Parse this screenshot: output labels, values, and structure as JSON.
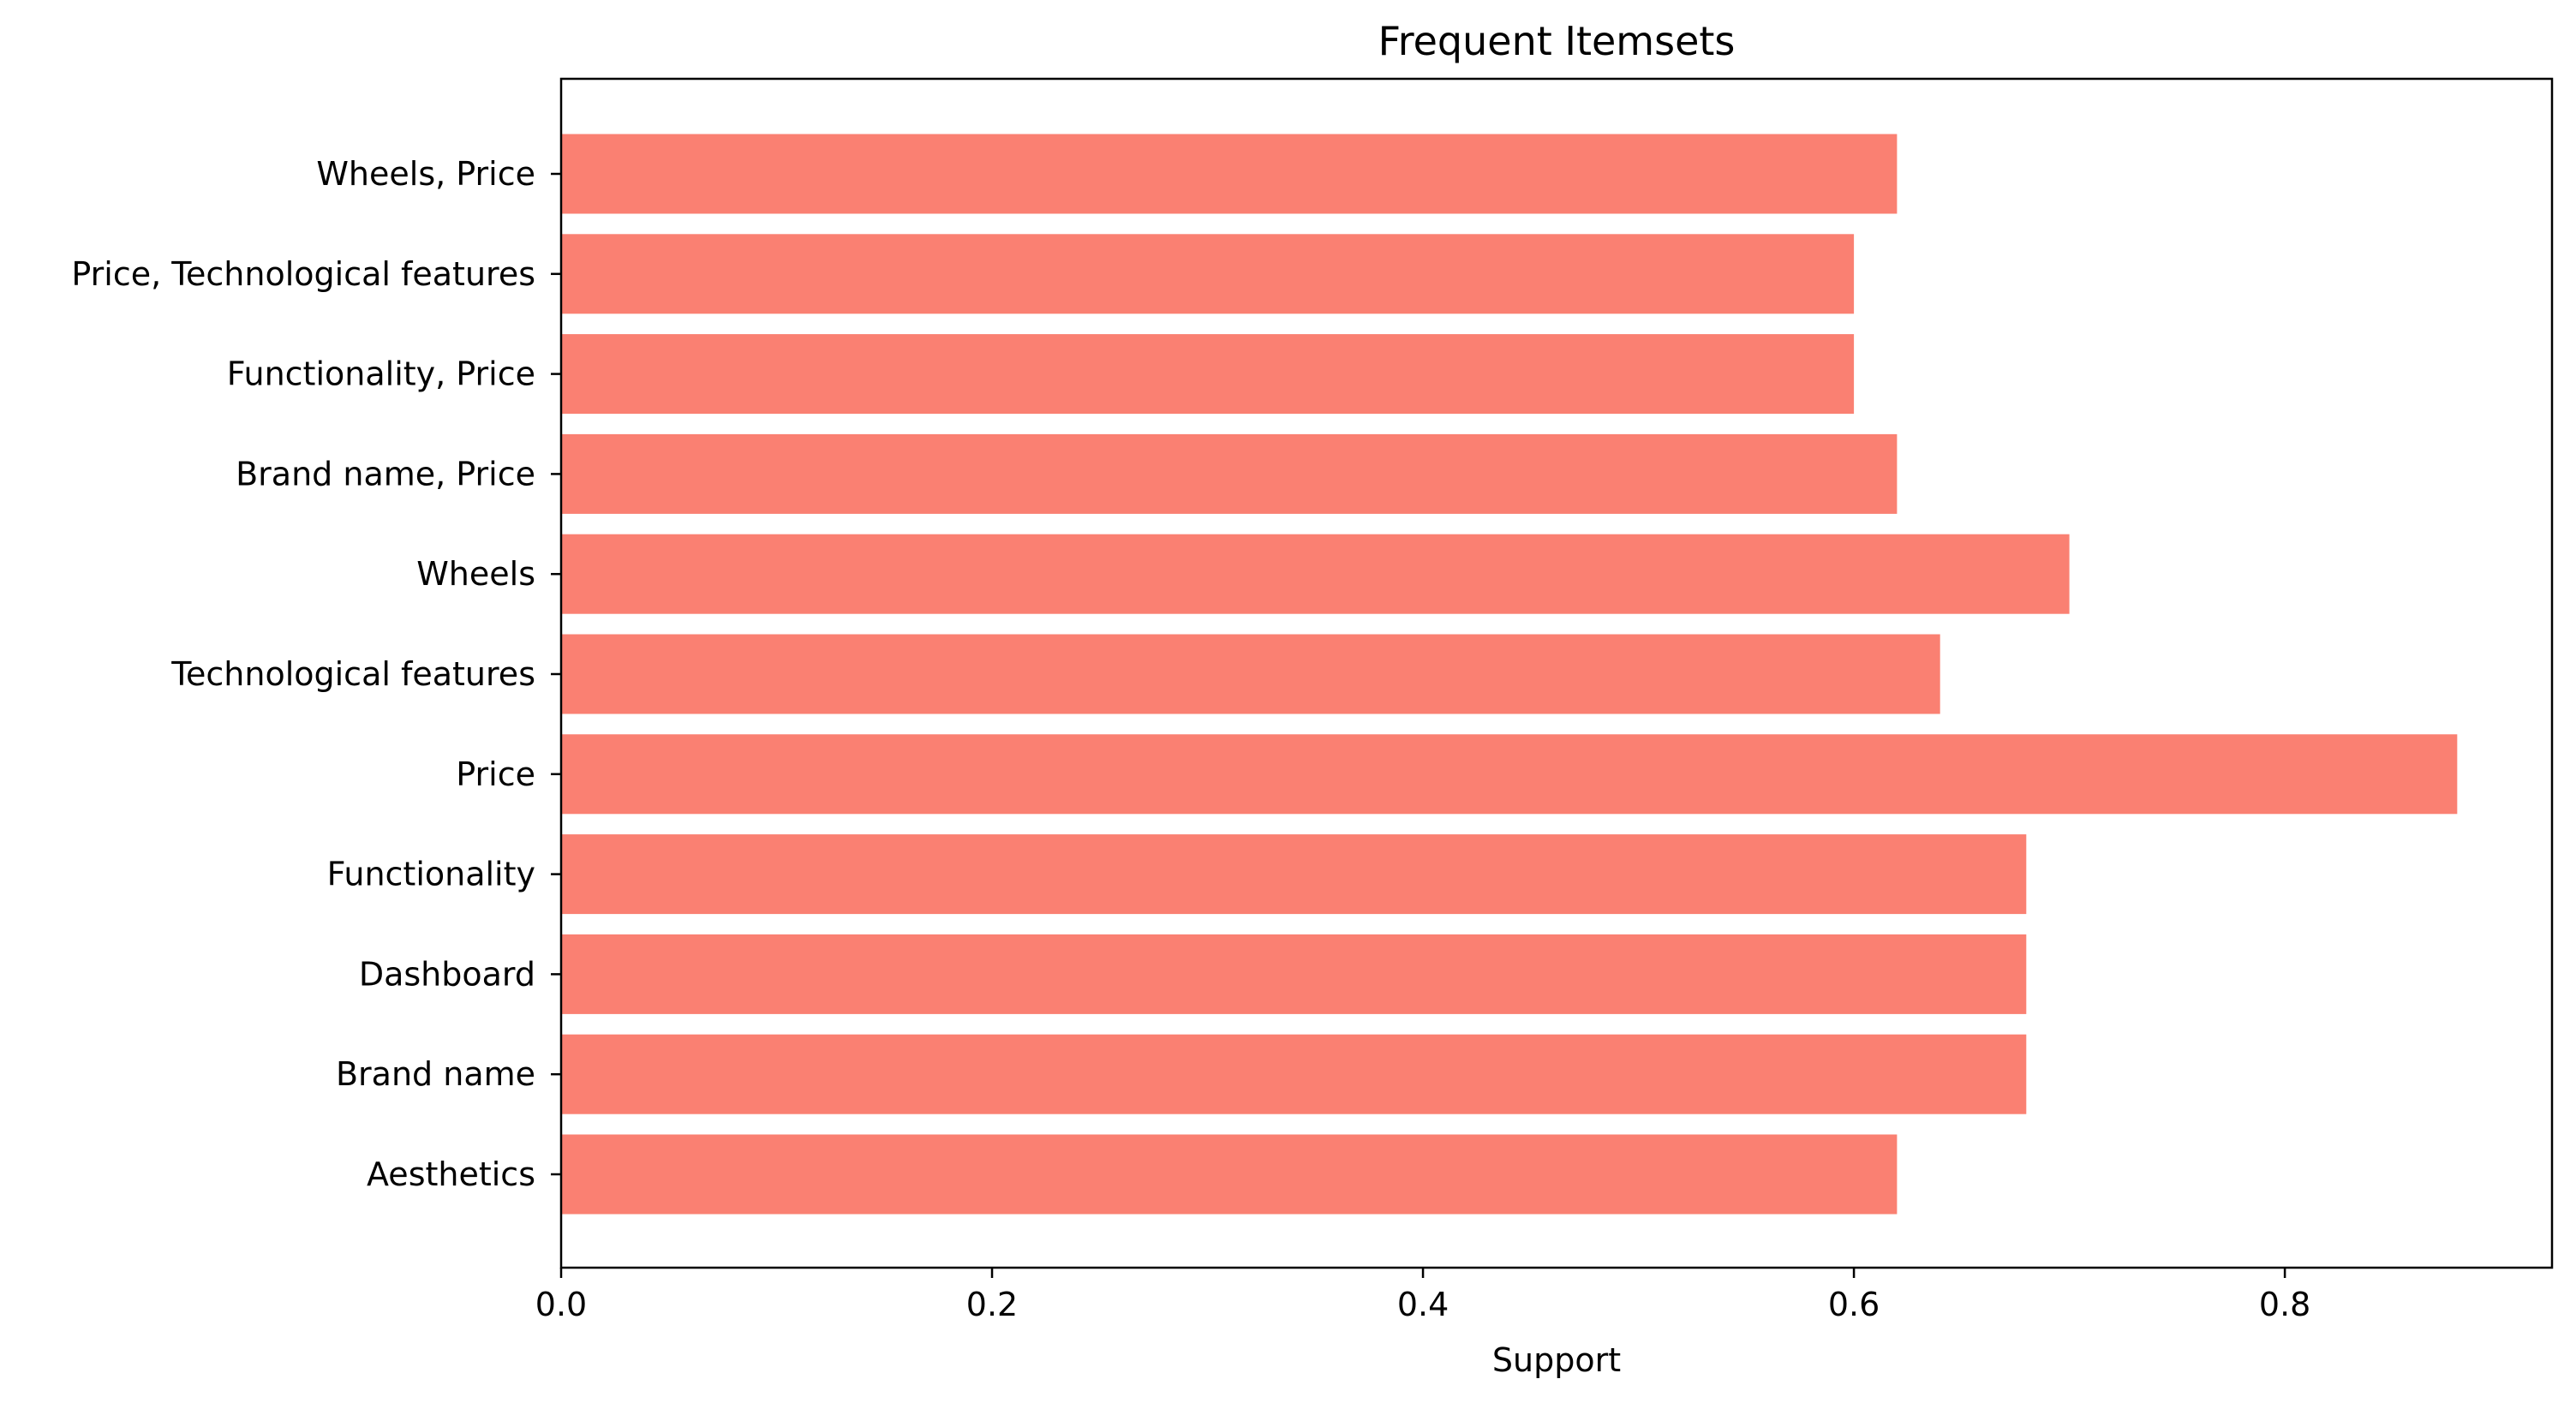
{
  "chart_data": {
    "type": "bar",
    "orientation": "horizontal",
    "title": "Frequent Itemsets",
    "xlabel": "Support",
    "ylabel": "",
    "categories": [
      "Aesthetics",
      "Brand name",
      "Dashboard",
      "Functionality",
      "Price",
      "Technological features",
      "Wheels",
      "Brand name, Price",
      "Functionality, Price",
      "Price, Technological features",
      "Wheels, Price"
    ],
    "values": [
      0.62,
      0.68,
      0.68,
      0.68,
      0.88,
      0.64,
      0.7,
      0.62,
      0.6,
      0.6,
      0.62
    ],
    "xlim": [
      0,
      0.924
    ],
    "xticks": [
      0.0,
      0.2,
      0.4,
      0.6,
      0.8
    ],
    "xtick_labels": [
      "0.0",
      "0.2",
      "0.4",
      "0.6",
      "0.8"
    ],
    "bar_color": "#fa8072",
    "grid": false,
    "legend": "none"
  }
}
